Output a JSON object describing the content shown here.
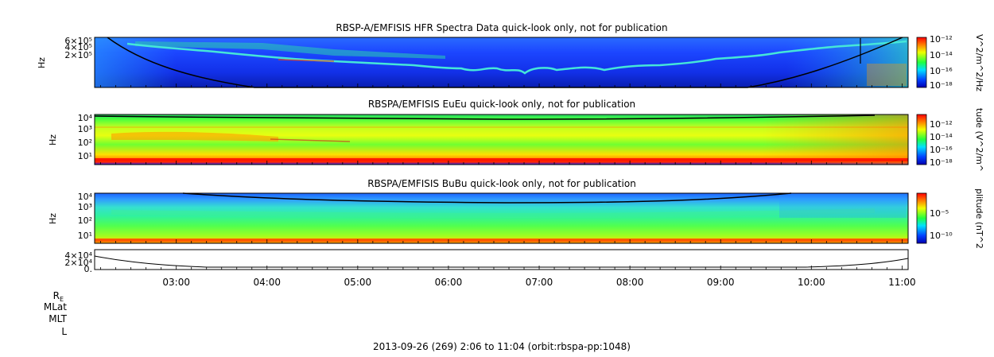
{
  "footer": "2013-09-26 (269) 2:06 to 11:04 (orbit:rbspa-pp:1048)",
  "ephemeris_labels": [
    "R",
    "MLat",
    "MLT",
    "L"
  ],
  "colors": {
    "curve": "#000000",
    "hfr_trace": "#45e6d8",
    "background_blue": "#1a3cff"
  },
  "chart_data": [
    {
      "type": "heatmap",
      "title": "RBSP-A/EMFISIS  HFR Spectra Data quick-look only, not for publication",
      "ylabel": "Hz",
      "ytick_labels": [
        "6×10⁵",
        "4×10⁵",
        "2×10⁵"
      ],
      "colorbar_label": "V^2/m^2/Hz",
      "colorbar_ticks": [
        "10⁻¹²",
        "10⁻¹⁴",
        "10⁻¹⁶",
        "10⁻¹⁸"
      ],
      "xlim": [
        "02:06",
        "11:04"
      ]
    },
    {
      "type": "heatmap",
      "title": "RBSPA/EMFISIS  EuEu quick-look only, not for publication",
      "ylabel": "Hz",
      "ytick_labels": [
        "10⁴",
        "10³",
        "10²",
        "10¹"
      ],
      "colorbar_label": "tude (V^2/m^",
      "colorbar_ticks": [
        "10⁻¹²",
        "10⁻¹⁴",
        "10⁻¹⁶",
        "10⁻¹⁸"
      ],
      "xlim": [
        "02:06",
        "11:04"
      ]
    },
    {
      "type": "heatmap",
      "title": "RBSPA/EMFISIS  BuBu quick-look only, not for publication",
      "ylabel": "Hz",
      "ytick_labels": [
        "10⁴",
        "10³",
        "10²",
        "10¹"
      ],
      "colorbar_label": "plitude (nT^2",
      "colorbar_ticks": [
        "10⁻⁵",
        "10⁻¹⁰"
      ],
      "xlim": [
        "02:06",
        "11:04"
      ]
    },
    {
      "type": "line",
      "title": "",
      "ytick_labels": [
        "4×10⁴",
        "2×10⁴",
        "0."
      ],
      "xtick_labels": [
        "03:00",
        "04:00",
        "05:00",
        "06:00",
        "07:00",
        "08:00",
        "09:00",
        "10:00",
        "11:00"
      ],
      "xlim": [
        "02:06",
        "11:04"
      ]
    }
  ]
}
